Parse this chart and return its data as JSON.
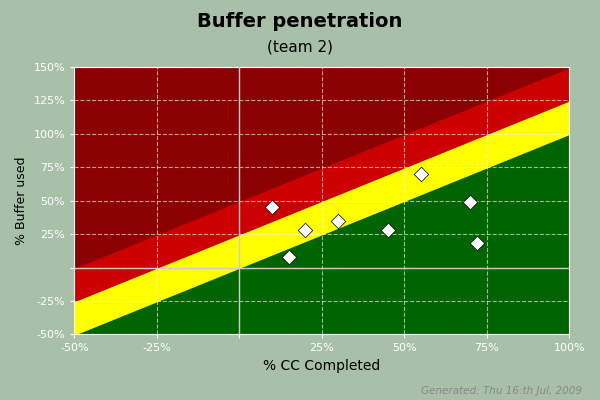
{
  "title": "Buffer penetration",
  "subtitle": "(team 2)",
  "xlabel": "% CC Completed",
  "ylabel": "% Buffer used",
  "generated_text": "Generated: Thu 16:th Jul, 2009",
  "background_color": "#a8bfa8",
  "dark_red_color": "#8b0000",
  "red_color": "#cc0000",
  "yellow_color": "#ffff00",
  "green_color": "#006400",
  "xlim": [
    -0.5,
    1.0
  ],
  "ylim": [
    -0.5,
    1.5
  ],
  "xticks": [
    -0.5,
    -0.25,
    0.0,
    0.25,
    0.5,
    0.75,
    1.0
  ],
  "yticks": [
    -0.5,
    -0.25,
    0.0,
    0.25,
    0.5,
    0.75,
    1.0,
    1.25,
    1.5
  ],
  "xtick_labels": [
    "-50%",
    "-25%",
    "",
    "25%",
    "50%",
    "75%",
    "100%"
  ],
  "ytick_labels": [
    "-50%",
    "-25%",
    "",
    "25%",
    "50%",
    "75%",
    "100%",
    "125%",
    "150%"
  ],
  "zone_lines": {
    "green_yellow_at_x0": 0.0,
    "yellow_red_at_x0": 0.25,
    "red_darkred_at_x0": 0.5,
    "slope": 1.0
  },
  "scatter_points": [
    [
      0.1,
      0.45
    ],
    [
      0.2,
      0.28
    ],
    [
      0.3,
      0.35
    ],
    [
      0.45,
      0.28
    ],
    [
      0.15,
      0.08
    ],
    [
      0.55,
      0.7
    ],
    [
      0.7,
      0.49
    ],
    [
      0.72,
      0.18
    ]
  ],
  "scatter_size": 55,
  "scatter_marker": "D",
  "grid_color": "#ffffff",
  "grid_style": "--",
  "grid_alpha": 0.6,
  "grid_linewidth": 0.8,
  "axis_line_color": "#cccccc",
  "tick_label_color": "white",
  "tick_fontsize": 8,
  "title_fontsize": 14,
  "subtitle_fontsize": 11,
  "ylabel_fontsize": 9,
  "xlabel_fontsize": 10,
  "generated_fontsize": 7.5,
  "figsize": [
    6.0,
    4.0
  ],
  "dpi": 100
}
